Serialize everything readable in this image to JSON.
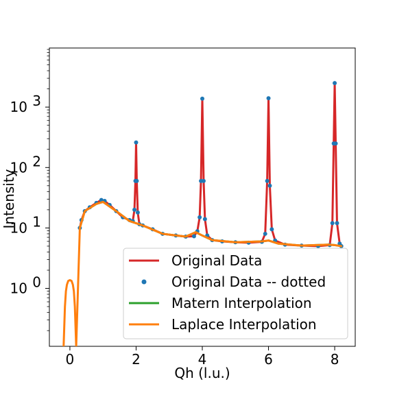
{
  "chart_data": {
    "type": "line",
    "xlabel": "Qh (l.u.)",
    "ylabel": "Intensity",
    "xlim": [
      -0.62,
      8.62
    ],
    "ylim": [
      0.11,
      9500
    ],
    "yscale": "log",
    "grid": false,
    "legend_position": "lower-right",
    "x_ticks": [
      {
        "value": 0,
        "label": "0"
      },
      {
        "value": 2,
        "label": "2"
      },
      {
        "value": 4,
        "label": "4"
      },
      {
        "value": 6,
        "label": "6"
      },
      {
        "value": 8,
        "label": "8"
      }
    ],
    "y_ticks": [
      {
        "value": 1,
        "base": "10",
        "exp": "0"
      },
      {
        "value": 10,
        "base": "10",
        "exp": "1"
      },
      {
        "value": 100,
        "base": "10",
        "exp": "2"
      },
      {
        "value": 1000,
        "base": "10",
        "exp": "3"
      }
    ],
    "series": [
      {
        "name": "Original Data",
        "color": "#d62728",
        "style": "line",
        "x": [
          0.3,
          0.35,
          0.45,
          0.6,
          0.8,
          0.95,
          1.05,
          1.2,
          1.4,
          1.6,
          1.8,
          1.9,
          1.95,
          1.98,
          2.0,
          2.02,
          2.05,
          2.1,
          2.2,
          2.5,
          2.8,
          3.2,
          3.5,
          3.75,
          3.85,
          3.92,
          3.96,
          4.0,
          4.04,
          4.08,
          4.15,
          4.3,
          4.6,
          5.0,
          5.4,
          5.8,
          5.9,
          5.96,
          6.0,
          6.04,
          6.1,
          6.2,
          6.5,
          7.0,
          7.5,
          7.85,
          7.93,
          7.97,
          8.0,
          8.03,
          8.07,
          8.15,
          8.2
        ],
        "y": [
          10,
          13.5,
          19,
          22,
          26,
          29,
          28,
          24,
          19,
          15,
          13.5,
          13,
          20,
          60,
          260,
          60,
          18,
          11.5,
          11,
          9.5,
          8,
          7.5,
          7.2,
          7.3,
          8.8,
          15,
          60,
          1380,
          60,
          14,
          7.5,
          6.3,
          6,
          5.8,
          5.7,
          5.9,
          8,
          60,
          1400,
          50,
          9.5,
          6.2,
          5.3,
          5.1,
          5.0,
          5.2,
          12,
          250,
          2500,
          250,
          12,
          5.5,
          5.0
        ]
      },
      {
        "name": "Original Data -- dotted",
        "color": "#1f77b4",
        "style": "dots",
        "x": [
          0.3,
          0.35,
          0.45,
          0.6,
          0.8,
          0.95,
          1.05,
          1.2,
          1.4,
          1.6,
          1.8,
          1.9,
          1.95,
          1.98,
          2.0,
          2.02,
          2.05,
          2.1,
          2.2,
          2.5,
          2.8,
          3.2,
          3.5,
          3.75,
          3.85,
          3.92,
          3.96,
          4.0,
          4.04,
          4.08,
          4.15,
          4.3,
          4.6,
          5.0,
          5.4,
          5.8,
          5.9,
          5.96,
          6.0,
          6.04,
          6.1,
          6.2,
          6.5,
          7.0,
          7.5,
          7.85,
          7.93,
          7.97,
          8.0,
          8.03,
          8.07,
          8.15,
          8.2
        ],
        "y": [
          10,
          13.5,
          19,
          22,
          26,
          29,
          28,
          24,
          19,
          15,
          13.5,
          13,
          20,
          60,
          260,
          60,
          18,
          11.5,
          11,
          9.5,
          8,
          7.5,
          7.2,
          7.3,
          8.8,
          15,
          60,
          1380,
          60,
          14,
          7.5,
          6.3,
          6,
          5.8,
          5.7,
          5.9,
          8,
          60,
          1400,
          50,
          9.5,
          6.2,
          5.3,
          5.1,
          5.0,
          5.2,
          12,
          250,
          2500,
          250,
          12,
          5.5,
          5.0
        ]
      },
      {
        "name": "Matern Interpolation",
        "color": "#2ca02c",
        "style": "line",
        "x": [
          0.3,
          0.45,
          0.8,
          1.0,
          1.4,
          1.8,
          2.2,
          2.8,
          3.5,
          3.8,
          4.0,
          4.3,
          5.0,
          5.8,
          6.0,
          6.3,
          7.0,
          7.8,
          8.0,
          8.2
        ],
        "y": [
          10,
          19,
          25,
          27,
          19,
          13,
          11,
          8,
          7.2,
          8.5,
          7.5,
          6.3,
          5.8,
          6.0,
          6.2,
          5.5,
          5.1,
          5.3,
          5.2,
          5.0
        ]
      },
      {
        "name": "Laplace Interpolation",
        "color": "#ff7f0e",
        "style": "line",
        "x": [
          -0.19,
          -0.15,
          -0.12,
          -0.09,
          -0.05,
          0.0,
          0.05,
          0.09,
          0.12,
          0.15,
          0.19,
          0.3,
          0.45,
          0.8,
          1.0,
          1.4,
          1.8,
          2.2,
          2.8,
          3.5,
          3.8,
          4.0,
          4.3,
          5.0,
          5.8,
          6.0,
          6.3,
          7.0,
          7.8,
          8.0,
          8.2
        ],
        "y": [
          0.11,
          0.5,
          0.9,
          1.15,
          1.33,
          1.37,
          1.33,
          1.15,
          0.9,
          0.5,
          0.11,
          10,
          19,
          25,
          27,
          19,
          13,
          11,
          8,
          7.2,
          8.5,
          7.5,
          6.3,
          5.8,
          6.0,
          6.2,
          5.5,
          5.1,
          5.3,
          5.2,
          5.0
        ]
      }
    ]
  }
}
